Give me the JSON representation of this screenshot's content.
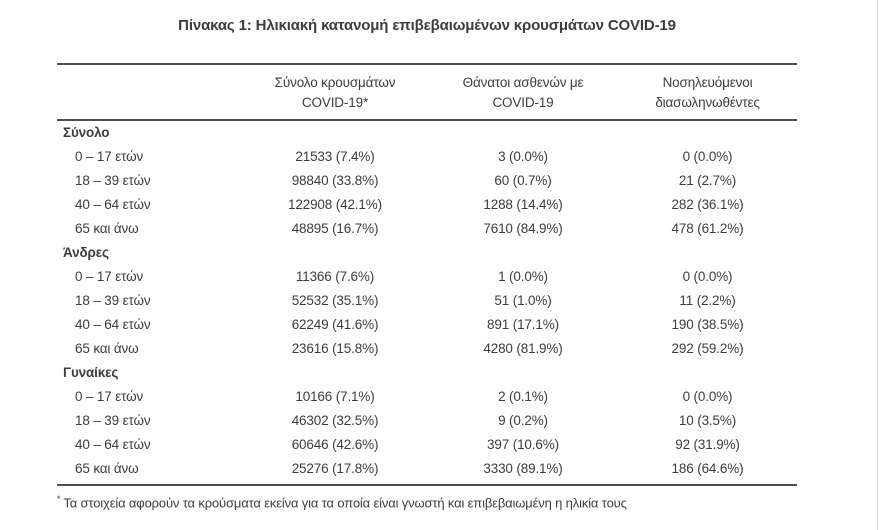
{
  "title": "Πίνακας 1: Ηλικιακή κατανομή επιβεβαιωμένων κρουσμάτων COVID-19",
  "colors": {
    "text": "#3d3d3d",
    "rule": "#4f4f4f",
    "background": "#ffffff",
    "edge": "#d8d8d8"
  },
  "table": {
    "col_headers": [
      {
        "line1": "Σύνολο κρουσμάτων",
        "line2": "COVID-19*"
      },
      {
        "line1": "Θάνατοι ασθενών με",
        "line2": "COVID-19"
      },
      {
        "line1": "Νοσηλευόμενοι",
        "line2": "διασωληνωθέντες"
      }
    ],
    "sections": [
      {
        "label": "Σύνολο",
        "rows": [
          {
            "age": "0 – 17 ετών",
            "cases": "21533 (7.4%)",
            "deaths": "3 (0.0%)",
            "intubated": "0 (0.0%)"
          },
          {
            "age": "18 – 39 ετών",
            "cases": "98840 (33.8%)",
            "deaths": "60 (0.7%)",
            "intubated": "21 (2.7%)"
          },
          {
            "age": "40 – 64 ετών",
            "cases": "122908 (42.1%)",
            "deaths": "1288 (14.4%)",
            "intubated": "282 (36.1%)"
          },
          {
            "age": "65 και άνω",
            "cases": "48895 (16.7%)",
            "deaths": "7610 (84.9%)",
            "intubated": "478 (61.2%)"
          }
        ]
      },
      {
        "label": "Άνδρες",
        "rows": [
          {
            "age": "0 – 17 ετών",
            "cases": "11366 (7.6%)",
            "deaths": "1 (0.0%)",
            "intubated": "0 (0.0%)"
          },
          {
            "age": "18 – 39 ετών",
            "cases": "52532 (35.1%)",
            "deaths": "51 (1.0%)",
            "intubated": "11 (2.2%)"
          },
          {
            "age": "40 – 64 ετών",
            "cases": "62249 (41.6%)",
            "deaths": "891 (17.1%)",
            "intubated": "190 (38.5%)"
          },
          {
            "age": "65 και άνω",
            "cases": "23616 (15.8%)",
            "deaths": "4280 (81.9%)",
            "intubated": "292 (59.2%)"
          }
        ]
      },
      {
        "label": "Γυναίκες",
        "rows": [
          {
            "age": "0 – 17 ετών",
            "cases": "10166 (7.1%)",
            "deaths": "2 (0.1%)",
            "intubated": "0 (0.0%)"
          },
          {
            "age": "18 – 39 ετών",
            "cases": "46302 (32.5%)",
            "deaths": "9 (0.2%)",
            "intubated": "10 (3.5%)"
          },
          {
            "age": "40 – 64 ετών",
            "cases": "60646 (42.6%)",
            "deaths": "397 (10.6%)",
            "intubated": "92 (31.9%)"
          },
          {
            "age": "65 και άνω",
            "cases": "25276 (17.8%)",
            "deaths": "3330 (89.1%)",
            "intubated": "186 (64.6%)"
          }
        ]
      }
    ]
  },
  "footnote": {
    "marker": "*",
    "text": "Τα στοιχεία αφορούν τα κρούσματα εκείνα για τα οποία είναι γνωστή και επιβεβαιωμένη η ηλικία τους"
  }
}
